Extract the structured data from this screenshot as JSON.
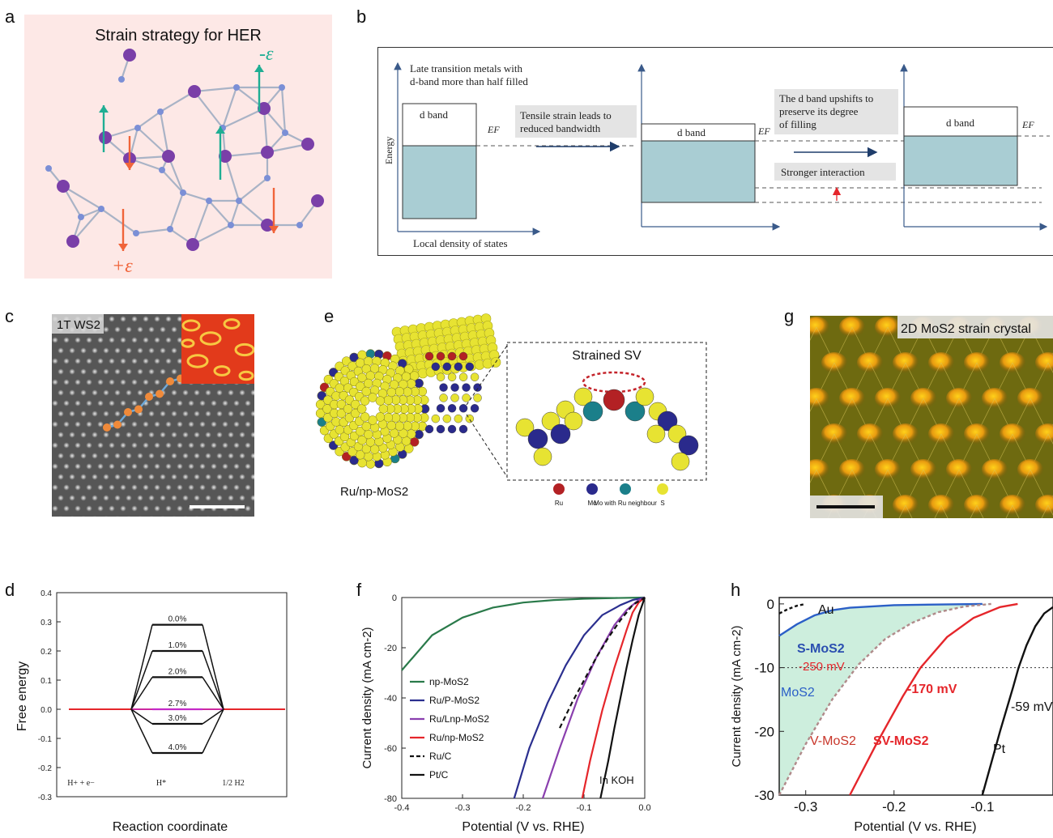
{
  "panel_labels": {
    "a": "a",
    "b": "b",
    "c": "c",
    "d": "d",
    "e": "e",
    "f": "f",
    "g": "g",
    "h": "h"
  },
  "panel_a": {
    "title": "Strain strategy for HER",
    "neg_strain": "-ε",
    "pos_strain": "+ε",
    "colors": {
      "background": "#fde8e6",
      "atom_large": "#7a3fa8",
      "atom_small": "#7b8fd6",
      "bond": "#a9b3c6",
      "up_arrow": "#1fae93",
      "down_arrow": "#f0643a"
    }
  },
  "panel_b": {
    "y_axis": "Energy",
    "x_axis": "Local density of states",
    "late_tm_line1": "Late transition metals with",
    "late_tm_line2": "d-band more than half filled",
    "d_band_1": "d band",
    "d_band_2": "d band",
    "d_band_3": "d band",
    "ef_1": "EF",
    "ef_2": "EF",
    "ef_3": "EF",
    "tensile_line1": "Tensile strain leads to",
    "tensile_line2": "reduced bandwidth",
    "upshift_line1": "The d band upshifts to",
    "upshift_line2": "preserve its degree",
    "upshift_line3": "of filling",
    "stronger": "Stronger interaction",
    "colors": {
      "filled": "#a9cdd3",
      "box": "#d9d9d9"
    }
  },
  "panel_c": {
    "label": "1T WS2"
  },
  "panel_e": {
    "inset_title": "Strained SV",
    "caption": "Ru/np-MoS2",
    "legend": [
      {
        "name": "Ru",
        "color": "#b32124"
      },
      {
        "name": "Mo",
        "color": "#2a2a8c"
      },
      {
        "name": "Mo with Ru neighbour",
        "color": "#1b7f8a"
      },
      {
        "name": "S",
        "color": "#e7e332"
      }
    ]
  },
  "panel_g": {
    "label": "2D MoS2 strain crystal"
  },
  "chart_data": [
    {
      "panel": "d",
      "type": "line",
      "xlabel": "Reaction coordinate",
      "ylabel": "Free energy",
      "ylim": [
        -0.3,
        0.4
      ],
      "yticks": [
        "0.4",
        "0.3",
        "0.2",
        "0.1",
        "0.0",
        "-0.1",
        "-0.2",
        "-0.3"
      ],
      "states": [
        "H+ + e−",
        "H*",
        "1/2 H2"
      ],
      "levels": [
        {
          "strain": "0.0%",
          "value": 0.29
        },
        {
          "strain": "1.0%",
          "value": 0.2
        },
        {
          "strain": "2.0%",
          "value": 0.11
        },
        {
          "strain": "2.7%",
          "value": 0.0
        },
        {
          "strain": "3.0%",
          "value": -0.05
        },
        {
          "strain": "4.0%",
          "value": -0.15
        }
      ]
    },
    {
      "panel": "f",
      "type": "line",
      "xlabel": "Potential (V vs. RHE)",
      "ylabel": "Current density (mA cm-2)",
      "xlim": [
        -0.4,
        0.0
      ],
      "ylim": [
        -80,
        0
      ],
      "xticks": [
        "-0.4",
        "-0.3",
        "-0.2",
        "-0.1",
        "0.0"
      ],
      "yticks": [
        "0",
        "-20",
        "-40",
        "-60",
        "-80"
      ],
      "annotation": "In KOH",
      "series": [
        {
          "name": "np-MoS2",
          "color": "#2a7a4a",
          "x": [
            -0.4,
            -0.35,
            -0.3,
            -0.25,
            -0.2,
            -0.15,
            -0.1,
            -0.05,
            0.0
          ],
          "y": [
            -29,
            -15,
            -8,
            -4,
            -2,
            -1,
            -0.5,
            -0.2,
            0
          ]
        },
        {
          "name": "Ru/P-MoS2",
          "color": "#2b2f8f",
          "x": [
            -0.215,
            -0.19,
            -0.16,
            -0.13,
            -0.1,
            -0.07,
            -0.04,
            -0.02,
            0.0
          ],
          "y": [
            -80,
            -60,
            -42,
            -27,
            -15,
            -7,
            -3,
            -1,
            0
          ]
        },
        {
          "name": "Ru/Lnp-MoS2",
          "color": "#8a3fae",
          "x": [
            -0.168,
            -0.14,
            -0.11,
            -0.08,
            -0.05,
            -0.03,
            -0.01,
            0.0
          ],
          "y": [
            -80,
            -60,
            -40,
            -24,
            -11,
            -5,
            -1,
            0
          ]
        },
        {
          "name": "Ru/np-MoS2",
          "color": "#e5262b",
          "x": [
            -0.103,
            -0.09,
            -0.07,
            -0.05,
            -0.03,
            -0.02,
            -0.01,
            0.0
          ],
          "y": [
            -80,
            -65,
            -45,
            -28,
            -13,
            -6,
            -2,
            0
          ]
        },
        {
          "name": "Ru/C",
          "color": "#111111",
          "dash": true,
          "x": [
            -0.14,
            -0.12,
            -0.1,
            -0.08,
            -0.06,
            -0.04,
            -0.02,
            0.0
          ],
          "y": [
            -52,
            -42,
            -33,
            -24,
            -16,
            -9,
            -3,
            0
          ]
        },
        {
          "name": "Pt/C",
          "color": "#111111",
          "x": [
            -0.073,
            -0.06,
            -0.05,
            -0.04,
            -0.03,
            -0.02,
            -0.01,
            0.0
          ],
          "y": [
            -80,
            -65,
            -52,
            -40,
            -28,
            -17,
            -7,
            0
          ]
        }
      ]
    },
    {
      "panel": "h",
      "type": "line",
      "xlabel": "Potential (V vs. RHE)",
      "ylabel": "Current density (mA cm-2)",
      "xlim": [
        -0.33,
        -0.02
      ],
      "ylim": [
        -30,
        1
      ],
      "xticks": [
        "-0.3",
        "-0.2",
        "-0.1"
      ],
      "yticks": [
        "0",
        "-10",
        "-20",
        "-30"
      ],
      "labels": {
        "au": "Au",
        "s_mos2": "S-MoS2",
        "mos2": "MoS2",
        "v_mos2": "V-MoS2",
        "sv_mos2": "SV-MoS2",
        "pt": "Pt",
        "mv250": "-250 mV",
        "mv170": "-170 mV",
        "mv59": "-59 mV"
      },
      "series": [
        {
          "name": "Au",
          "color": "#111111",
          "dash": true,
          "x": [
            -0.33,
            -0.32,
            -0.31,
            -0.3
          ],
          "y": [
            -1.5,
            -0.8,
            -0.3,
            0
          ]
        },
        {
          "name": "MoS2",
          "color": "#2b5fc7",
          "x": [
            -0.33,
            -0.31,
            -0.29,
            -0.27,
            -0.25,
            -0.2,
            -0.1
          ],
          "y": [
            -5,
            -3.2,
            -1.8,
            -1.0,
            -0.6,
            -0.2,
            0
          ]
        },
        {
          "name": "V-MoS2",
          "color": "#b08a8a",
          "dash": true,
          "x": [
            -0.33,
            -0.3,
            -0.27,
            -0.24,
            -0.21,
            -0.18,
            -0.15,
            -0.12,
            -0.09
          ],
          "y": [
            -30,
            -22,
            -15,
            -9.5,
            -5.5,
            -3,
            -1.3,
            -0.4,
            0
          ]
        },
        {
          "name": "SV-MoS2",
          "color": "#e5262b",
          "x": [
            -0.25,
            -0.22,
            -0.19,
            -0.17,
            -0.14,
            -0.11,
            -0.08,
            -0.06
          ],
          "y": [
            -30,
            -22,
            -14.5,
            -10,
            -5.2,
            -2.2,
            -0.5,
            0
          ]
        },
        {
          "name": "Pt",
          "color": "#111111",
          "x": [
            -0.1,
            -0.08,
            -0.065,
            -0.059,
            -0.05,
            -0.04,
            -0.03,
            -0.02
          ],
          "y": [
            -30,
            -20,
            -13,
            -10,
            -6.5,
            -3.5,
            -1.5,
            -0.5
          ]
        }
      ]
    }
  ]
}
